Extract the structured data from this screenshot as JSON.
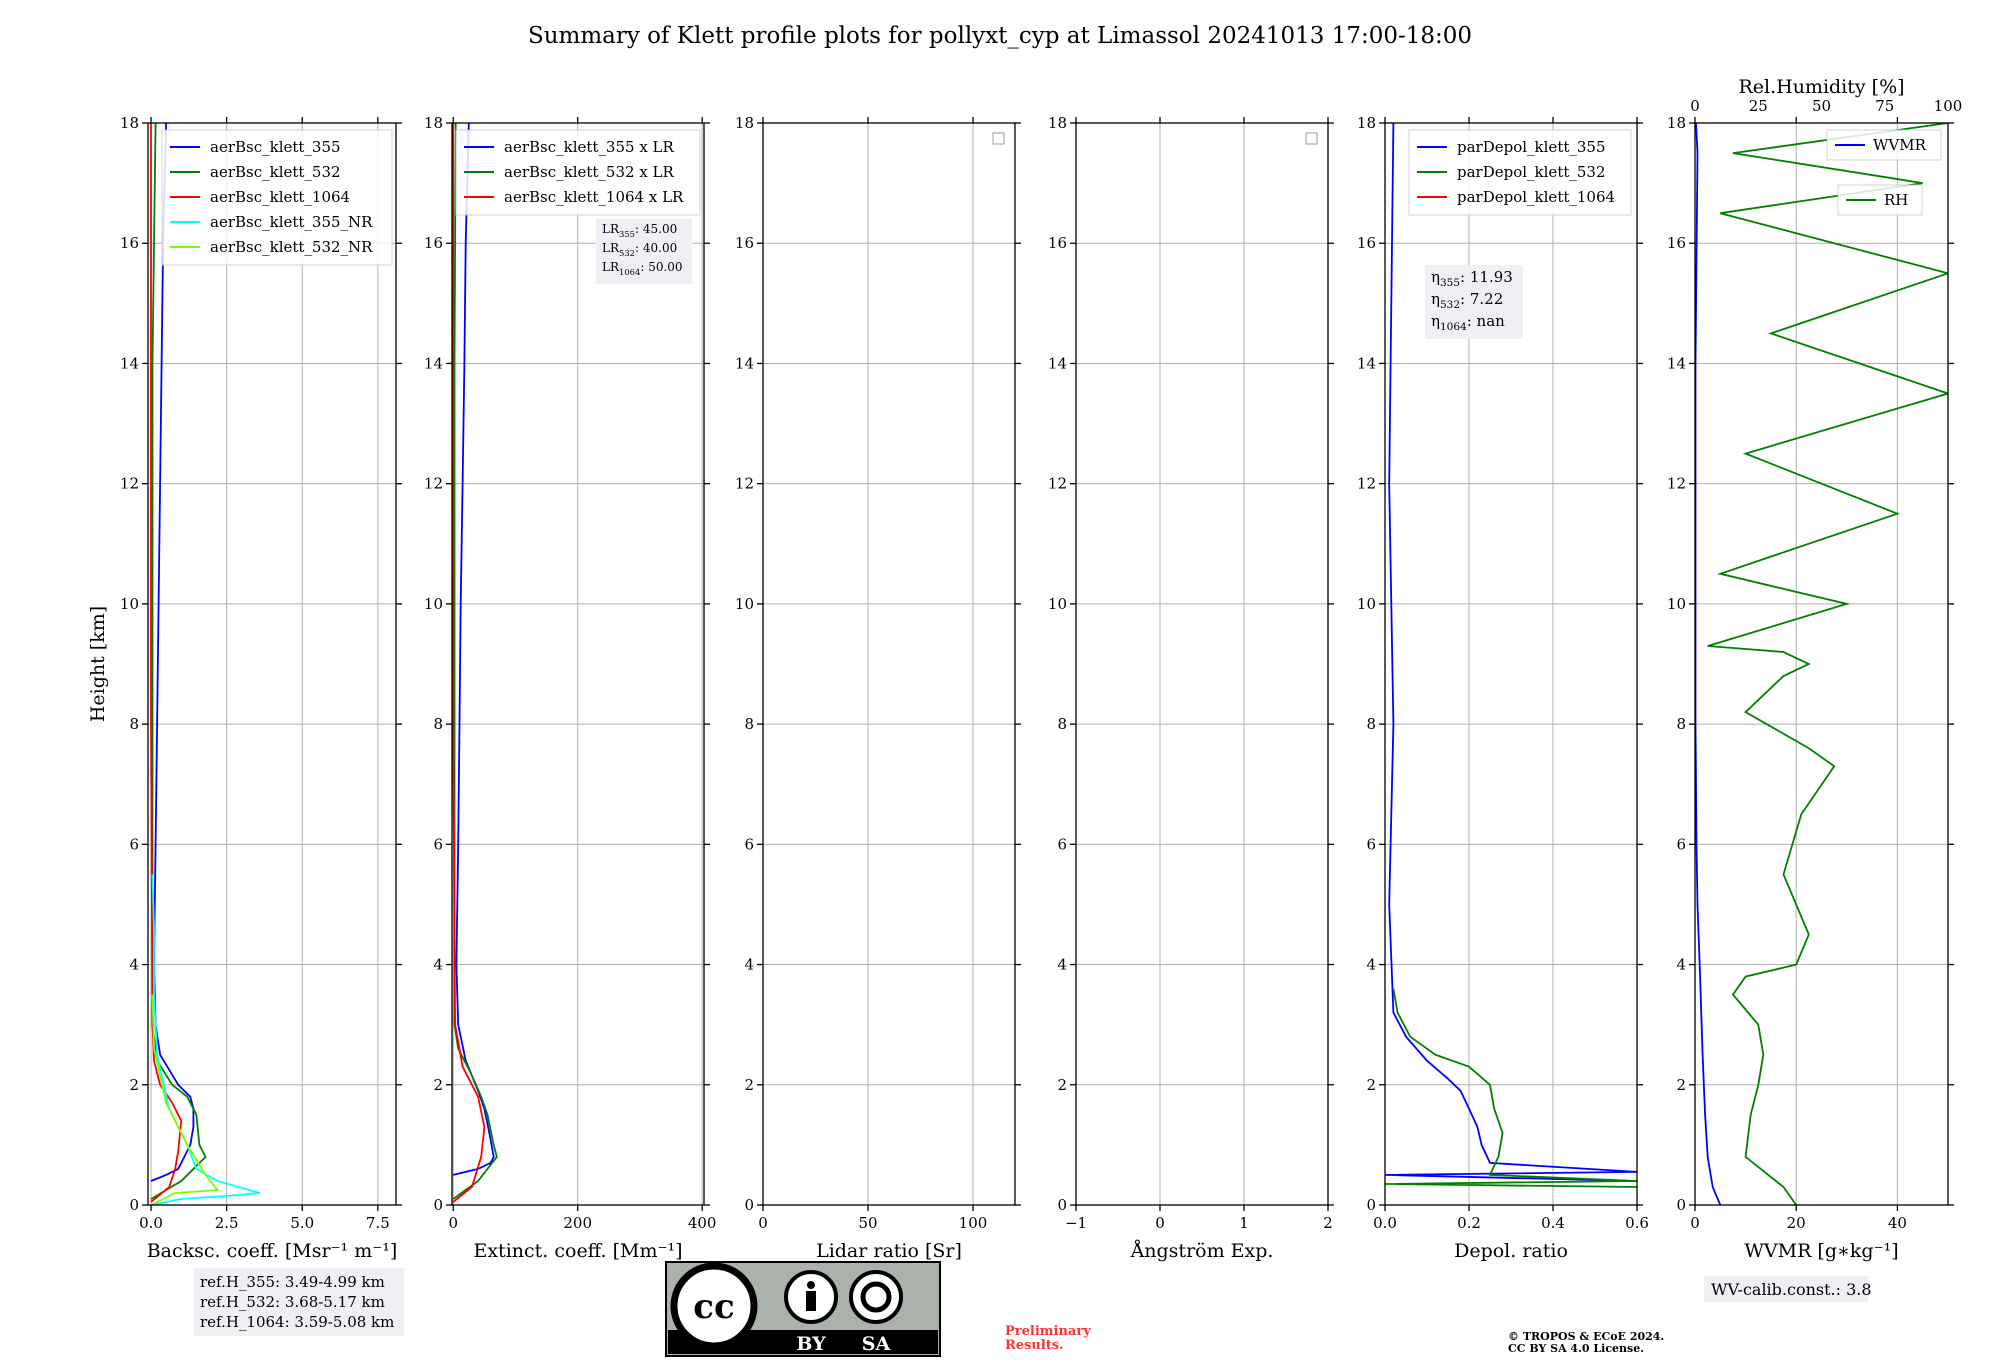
{
  "title": "Summary of Klett profile plots for pollyxt_cyp at Limassol 20241013 17:00-18:00",
  "colors": {
    "c355": "#0000ff",
    "c532": "#008000",
    "c1064": "#ff0000",
    "c355nr": "#00ffff",
    "c532nr": "#7cfc00"
  },
  "chart_data": [
    {
      "type": "line",
      "id": "bsc",
      "xlabel": "Backsc. coeff. [Msr⁻¹ m⁻¹]",
      "ylabel": "Height [km]",
      "xlim": [
        -0.1,
        8.1
      ],
      "xticks": [
        "0.0",
        "2.5",
        "5.0",
        "7.5"
      ],
      "xtick_values": [
        0,
        2.5,
        5.0,
        7.5
      ],
      "ylim": [
        0,
        18
      ],
      "yticks": [
        "0",
        "2",
        "4",
        "6",
        "8",
        "10",
        "12",
        "14",
        "16",
        "18"
      ],
      "legend": [
        "aerBsc_klett_355",
        "aerBsc_klett_532",
        "aerBsc_klett_1064",
        "aerBsc_klett_355_NR",
        "aerBsc_klett_532_NR"
      ],
      "series": [
        {
          "name": "aerBsc_klett_355",
          "color": "#0000ff",
          "x": [
            0,
            0.5,
            0.9,
            1.1,
            1.3,
            1.4,
            1.4,
            1.3,
            0.9,
            0.3,
            0.15,
            0.1,
            0.15,
            0.2,
            0.25,
            0.3,
            0.35,
            0.4,
            0.45,
            0.5
          ],
          "y": [
            0.4,
            0.5,
            0.6,
            0.8,
            1.0,
            1.3,
            1.6,
            1.8,
            2.0,
            2.5,
            3.0,
            4.0,
            6.0,
            8.0,
            10.0,
            12.0,
            14.0,
            16.0,
            17.0,
            18.0
          ]
        },
        {
          "name": "aerBsc_klett_532",
          "color": "#008000",
          "x": [
            0,
            1.0,
            1.8,
            1.6,
            1.5,
            1.2,
            0.7,
            0.2,
            0.05,
            0.05,
            0.05,
            0.05,
            0.1,
            0.15
          ],
          "y": [
            0.1,
            0.4,
            0.8,
            1.0,
            1.5,
            1.8,
            2.0,
            2.4,
            3.0,
            6.0,
            10.0,
            14.0,
            16.0,
            18.0
          ]
        },
        {
          "name": "aerBsc_klett_1064",
          "color": "#ff0000",
          "x": [
            0,
            0.6,
            0.8,
            0.9,
            1.0,
            0.7,
            0.3,
            0.1,
            0.05,
            0.0,
            0.0,
            0.0
          ],
          "y": [
            0.05,
            0.3,
            0.6,
            0.9,
            1.4,
            1.7,
            2.0,
            2.4,
            3.0,
            8.0,
            14.0,
            18.0
          ]
        },
        {
          "name": "aerBsc_klett_355_NR",
          "color": "#00ffff",
          "x": [
            0,
            1.0,
            2.5,
            3.6,
            2.2,
            1.5,
            1.2,
            0.6,
            0.2,
            0.1,
            0.1,
            0.05
          ],
          "y": [
            0.0,
            0.1,
            0.15,
            0.2,
            0.4,
            0.6,
            1.0,
            1.6,
            2.5,
            3.5,
            4.6,
            5.5
          ]
        },
        {
          "name": "aerBsc_klett_532_NR",
          "color": "#7cfc00",
          "x": [
            0,
            0.8,
            2.2,
            1.8,
            1.2,
            0.5,
            0.1,
            0.05
          ],
          "y": [
            0.0,
            0.2,
            0.25,
            0.5,
            1.0,
            1.7,
            2.6,
            3.5
          ]
        }
      ]
    },
    {
      "type": "line",
      "id": "ext",
      "xlabel": "Extinct. coeff. [Mm⁻¹]",
      "xlim": [
        -2,
        403
      ],
      "xticks": [
        "0",
        "200",
        "400"
      ],
      "xtick_values": [
        0,
        200,
        400
      ],
      "ylim": [
        0,
        18
      ],
      "yticks": [
        "0",
        "2",
        "4",
        "6",
        "8",
        "10",
        "12",
        "14",
        "16",
        "18"
      ],
      "legend": [
        "aerBsc_klett_355 x LR",
        "aerBsc_klett_532 x LR",
        "aerBsc_klett_1064 x LR"
      ],
      "series": [
        {
          "name": "aerBsc_klett_355 x LR",
          "color": "#0000ff",
          "x": [
            0,
            40,
            60,
            65,
            58,
            50,
            40,
            20,
            8,
            5,
            8,
            10,
            12,
            15,
            18,
            20,
            25
          ],
          "y": [
            0.5,
            0.6,
            0.7,
            0.8,
            1.2,
            1.6,
            1.9,
            2.4,
            3.0,
            4.0,
            6.0,
            8.0,
            10.0,
            12.0,
            14.0,
            16.0,
            18.0
          ]
        },
        {
          "name": "aerBsc_klett_532 x LR",
          "color": "#008000",
          "x": [
            0,
            40,
            70,
            65,
            55,
            45,
            28,
            8,
            2,
            2,
            2,
            4
          ],
          "y": [
            0.1,
            0.4,
            0.8,
            1.0,
            1.5,
            1.8,
            2.2,
            2.6,
            3.0,
            8.0,
            14.0,
            18.0
          ]
        },
        {
          "name": "aerBsc_klett_1064 x LR",
          "color": "#ff0000",
          "x": [
            0,
            30,
            45,
            50,
            40,
            15,
            3,
            0,
            0
          ],
          "y": [
            0.05,
            0.3,
            0.8,
            1.3,
            1.8,
            2.3,
            3.0,
            8.0,
            18.0
          ]
        }
      ],
      "annotation": [
        {
          "name": "LR",
          "sub": "355",
          "value": ": 45.00"
        },
        {
          "name": "LR",
          "sub": "532",
          "value": ": 40.00"
        },
        {
          "name": "LR",
          "sub": "1064",
          "value": ": 50.00"
        }
      ]
    },
    {
      "type": "line",
      "id": "lr",
      "xlabel": "Lidar ratio [Sr]",
      "xlim": [
        0,
        120
      ],
      "xticks": [
        "0",
        "50",
        "100"
      ],
      "xtick_values": [
        0,
        50,
        100
      ],
      "ylim": [
        0,
        18
      ],
      "yticks": [
        "0",
        "2",
        "4",
        "6",
        "8",
        "10",
        "12",
        "14",
        "16",
        "18"
      ],
      "series": []
    },
    {
      "type": "line",
      "id": "ang",
      "xlabel": "Ångström Exp.",
      "xlim": [
        -1,
        2
      ],
      "xticks": [
        "−1",
        "0",
        "1",
        "2"
      ],
      "xtick_values": [
        -1,
        0,
        1,
        2
      ],
      "ylim": [
        0,
        18
      ],
      "yticks": [
        "0",
        "2",
        "4",
        "6",
        "8",
        "10",
        "12",
        "14",
        "16",
        "18"
      ],
      "series": []
    },
    {
      "type": "line",
      "id": "depol",
      "xlabel": "Depol. ratio",
      "xlim": [
        0,
        0.6
      ],
      "xticks": [
        "0.0",
        "0.2",
        "0.4",
        "0.6"
      ],
      "xtick_values": [
        0,
        0.2,
        0.4,
        0.6
      ],
      "ylim": [
        0,
        18
      ],
      "yticks": [
        "0",
        "2",
        "4",
        "6",
        "8",
        "10",
        "12",
        "14",
        "16",
        "18"
      ],
      "legend": [
        "parDepol_klett_355",
        "parDepol_klett_532",
        "parDepol_klett_1064"
      ],
      "series": [
        {
          "name": "parDepol_klett_355",
          "color": "#0000ff",
          "x": [
            0.6,
            0.0,
            0.6,
            0.25,
            0.23,
            0.22,
            0.2,
            0.18,
            0.15,
            0.1,
            0.05,
            0.02,
            0.01,
            0.02,
            0.01,
            0.02
          ],
          "y": [
            0.4,
            0.5,
            0.55,
            0.7,
            1.0,
            1.3,
            1.6,
            1.9,
            2.1,
            2.4,
            2.8,
            3.2,
            5.0,
            8.0,
            12.0,
            18.0
          ]
        },
        {
          "name": "parDepol_klett_532",
          "color": "#008000",
          "x": [
            0.6,
            0.0,
            0.6,
            0.25,
            0.27,
            0.28,
            0.26,
            0.25,
            0.2,
            0.12,
            0.06,
            0.03,
            0.02
          ],
          "y": [
            0.3,
            0.35,
            0.4,
            0.5,
            0.8,
            1.2,
            1.6,
            2.0,
            2.3,
            2.5,
            2.8,
            3.2,
            3.6
          ]
        }
      ],
      "annotation": [
        {
          "name": "η",
          "sub": "355",
          "value": ": 11.93"
        },
        {
          "name": "η",
          "sub": "532",
          "value": ": 7.22"
        },
        {
          "name": "η",
          "sub": "1064",
          "value": ": nan"
        }
      ]
    },
    {
      "type": "line",
      "id": "wvmr",
      "xlabel": "WVMR [g∗kg⁻¹]",
      "xlim": [
        0,
        50
      ],
      "xticks": [
        "0",
        "20",
        "40"
      ],
      "xtick_values": [
        0,
        20,
        40
      ],
      "x2label": "Rel.Humidity [%]",
      "x2lim": [
        0,
        100
      ],
      "x2ticks": [
        "0",
        "25",
        "50",
        "75",
        "100"
      ],
      "x2tick_values": [
        0,
        25,
        50,
        75,
        100
      ],
      "ylim": [
        0,
        18
      ],
      "yticks": [
        "0",
        "2",
        "4",
        "6",
        "8",
        "10",
        "12",
        "14",
        "16",
        "18"
      ],
      "legend": [
        "WVMR",
        "RH"
      ],
      "series": [
        {
          "name": "WVMR",
          "axis": "bottom",
          "color": "#0000ff",
          "x": [
            5,
            3.5,
            2.5,
            2.0,
            1.5,
            1.0,
            0.5,
            0.3,
            0.2,
            0.1,
            0.1,
            0.1,
            0.5,
            0.2
          ],
          "y": [
            0.0,
            0.3,
            0.8,
            1.5,
            2.5,
            3.8,
            5.0,
            6.0,
            7.0,
            8.0,
            10.0,
            14.0,
            17.5,
            18.0
          ]
        },
        {
          "name": "RH",
          "axis": "top",
          "color": "#008000",
          "x": [
            40,
            35,
            20,
            22,
            25,
            27,
            25,
            15,
            20,
            40,
            45,
            35,
            42,
            55,
            45,
            20,
            35,
            45,
            35,
            5,
            60,
            10,
            80,
            20,
            100,
            30,
            100,
            10,
            90,
            15,
            100
          ],
          "y": [
            0.0,
            0.3,
            0.8,
            1.5,
            2.0,
            2.5,
            3.0,
            3.5,
            3.8,
            4.0,
            4.5,
            5.5,
            6.5,
            7.3,
            7.6,
            8.2,
            8.8,
            9.0,
            9.2,
            9.3,
            10.0,
            10.5,
            11.5,
            12.5,
            13.5,
            14.5,
            15.5,
            16.5,
            17.0,
            17.5,
            18.0
          ]
        }
      ]
    }
  ],
  "refbox": [
    "ref.H_355: 3.49-4.99 km",
    "ref.H_532: 3.68-5.17 km",
    "ref.H_1064: 3.59-5.08 km"
  ],
  "wvcalib": "WV-calib.const.: 3.8",
  "preliminary": [
    "Preliminary",
    "Results."
  ],
  "copyright": [
    "© TROPOS & ECoE 2024.",
    "CC BY SA 4.0 License."
  ],
  "license_badge": {
    "cc": "cc",
    "by": "BY",
    "sa": "SA"
  }
}
